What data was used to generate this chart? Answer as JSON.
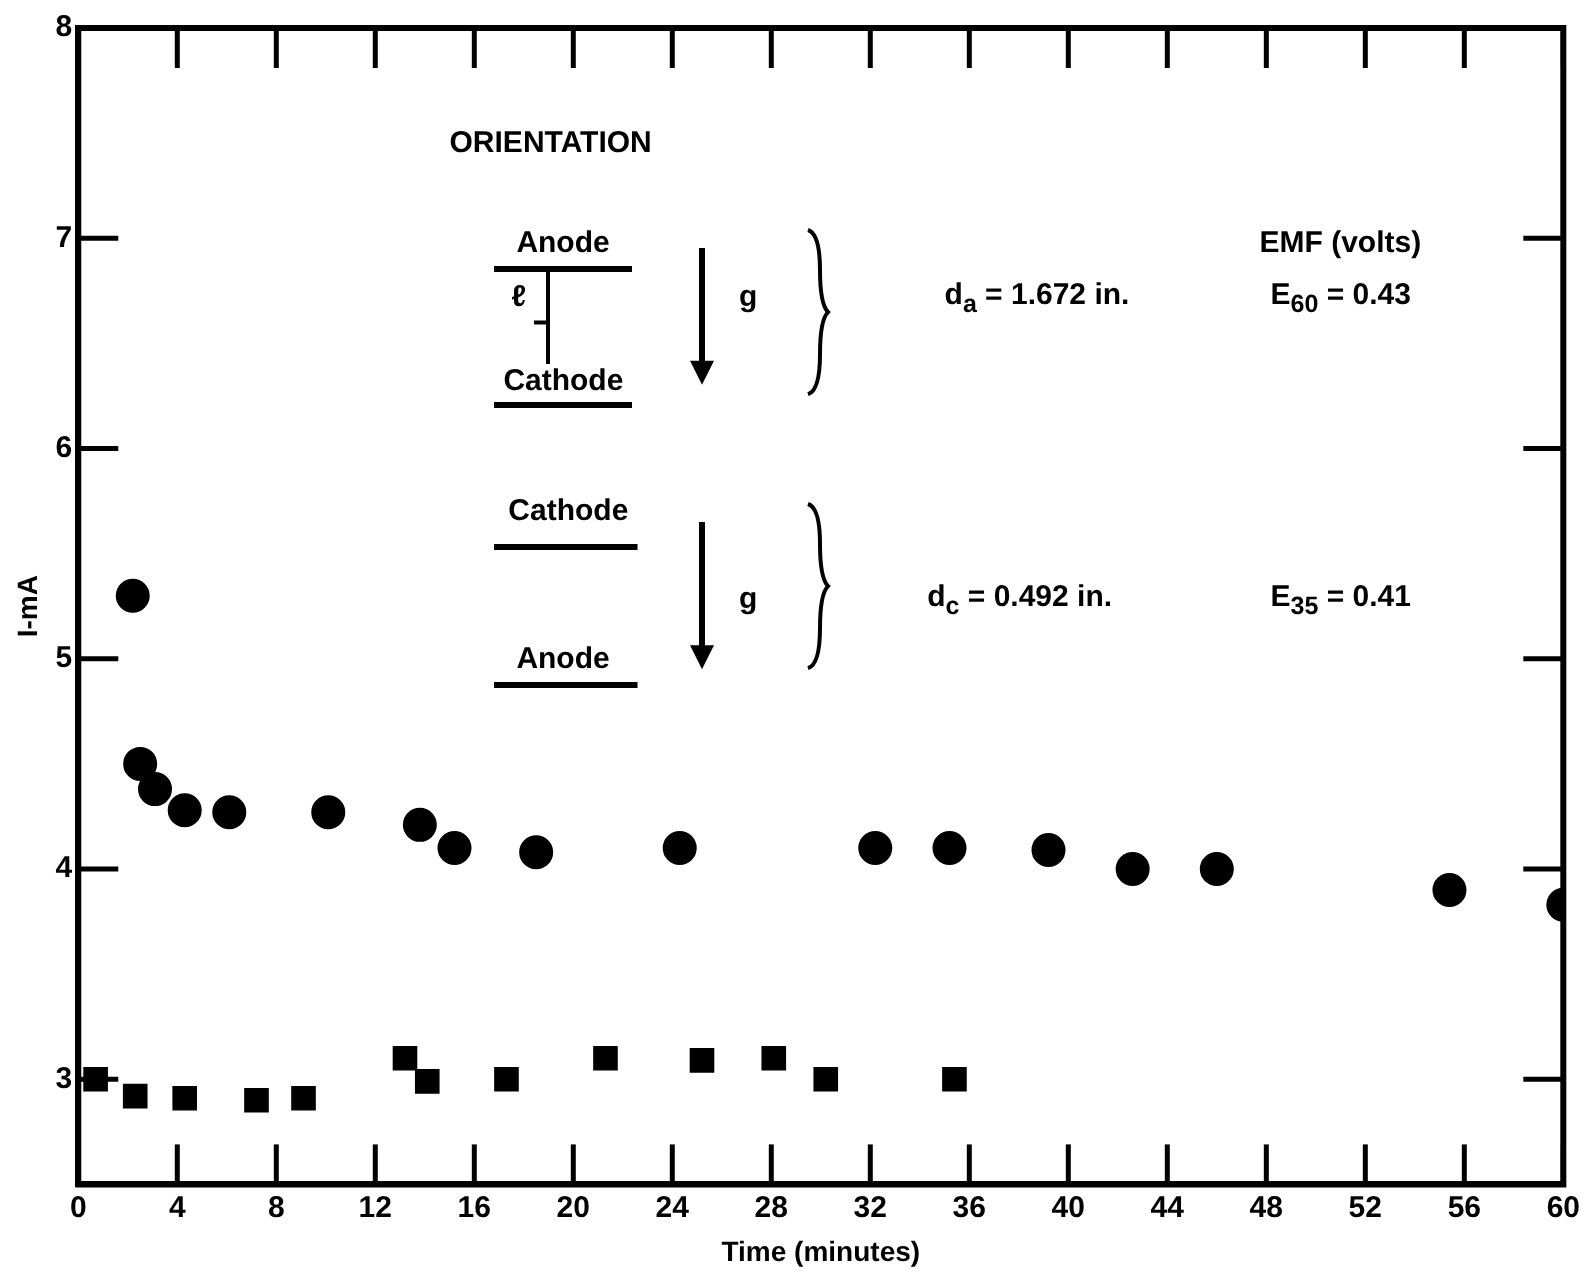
{
  "chart_data": {
    "type": "scatter",
    "xlabel": "Time (minutes)",
    "ylabel": "I-mA",
    "xlim": [
      0,
      60
    ],
    "xticks": [
      0,
      4,
      8,
      12,
      16,
      20,
      24,
      28,
      32,
      36,
      40,
      44,
      48,
      52,
      56,
      60
    ],
    "ylim": [
      2.5,
      8
    ],
    "yticks": [
      3,
      4,
      5,
      6,
      7,
      8
    ],
    "grid": false,
    "legend": false,
    "series": [
      {
        "color": "#000000",
        "marker": "circle",
        "x": [
          2.2,
          2.5,
          3.1,
          4.3,
          6.1,
          10.1,
          13.8,
          15.2,
          18.5,
          24.3,
          32.2,
          35.2,
          39.2,
          42.6,
          46.0,
          55.4,
          60
        ],
        "values": [
          5.3,
          4.5,
          4.38,
          4.28,
          4.27,
          4.27,
          4.21,
          4.1,
          4.08,
          4.1,
          4.1,
          4.1,
          4.09,
          4.0,
          4.0,
          3.9,
          3.83
        ]
      },
      {
        "color": "#000000",
        "marker": "square",
        "x": [
          0.7,
          2.3,
          4.3,
          7.2,
          9.1,
          13.2,
          14.1,
          17.3,
          21.3,
          25.2,
          28.1,
          30.2,
          35.4
        ],
        "values": [
          3.0,
          2.92,
          2.91,
          2.9,
          2.91,
          3.1,
          2.99,
          3.0,
          3.1,
          3.09,
          3.1,
          3.0,
          3.0
        ]
      }
    ],
    "annotations": [
      "ORIENTATION",
      "Anode",
      "ℓ",
      "Cathode",
      "g",
      "d$_{a}$ = 1.672 in.",
      "EMF (volts)",
      "E$_{60}$ = 0.43",
      "Cathode",
      "Anode",
      "g",
      "d$_{c}$ = 0.492 in.",
      "E$_{35}$ = 0.41"
    ]
  }
}
